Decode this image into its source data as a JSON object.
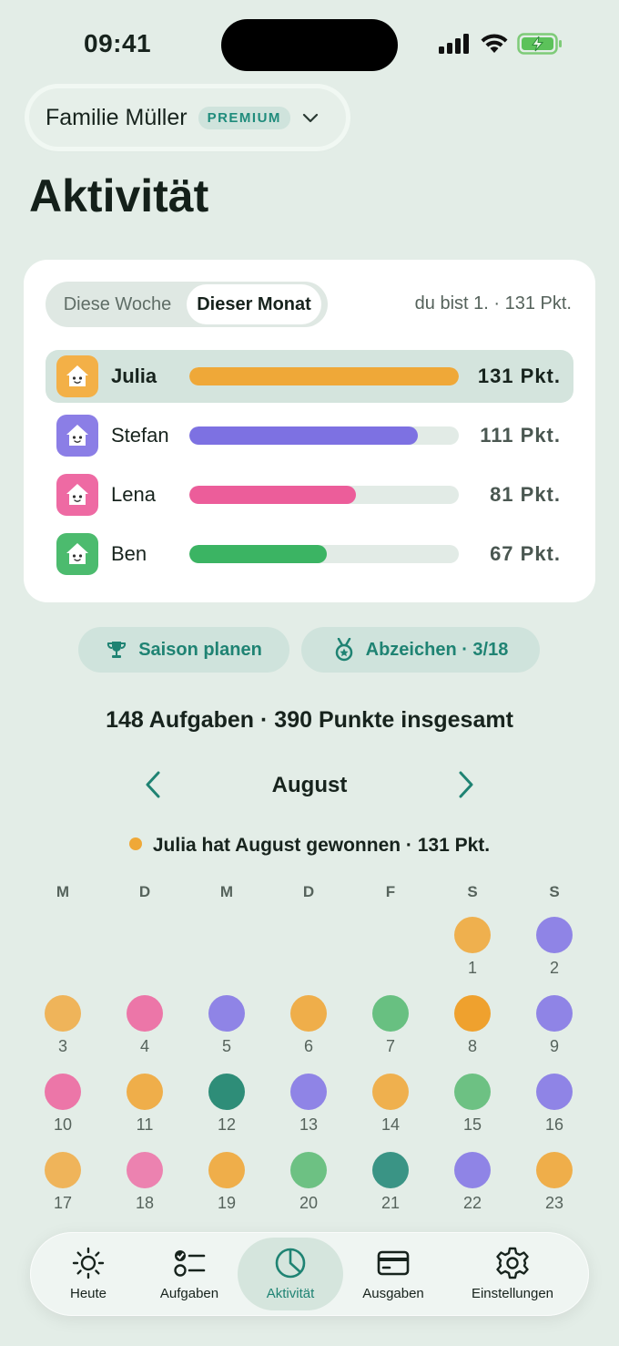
{
  "status": {
    "time": "09:41"
  },
  "family": {
    "name": "Familie Müller",
    "badge": "PREMIUM"
  },
  "page": {
    "title": "Aktivität"
  },
  "leaderboard": {
    "tabs": [
      "Diese Woche",
      "Dieser Monat"
    ],
    "selected_tab": "Dieser Monat",
    "rank_text": "du bist 1. · 131 Pkt.",
    "members": [
      {
        "name": "Julia",
        "points_label": "131 Pkt.",
        "points": 131,
        "color": "#efa838",
        "avatar_bg": "#f3b047"
      },
      {
        "name": "Stefan",
        "points_label": "111 Pkt.",
        "points": 111,
        "color": "#7d71e2",
        "avatar_bg": "#8b7ee6"
      },
      {
        "name": "Lena",
        "points_label": "81 Pkt.",
        "points": 81,
        "color": "#ec5d9a",
        "avatar_bg": "#ee6aa3"
      },
      {
        "name": "Ben",
        "points_label": "67 Pkt.",
        "points": 67,
        "color": "#3bb463",
        "avatar_bg": "#4cbb6e"
      }
    ]
  },
  "actions": {
    "season": "Saison planen",
    "badges": "Abzeichen · 3/18"
  },
  "summary": "148 Aufgaben · 390 Punkte insgesamt",
  "calendar": {
    "month": "August",
    "winner_text": "Julia hat August gewonnen · 131 Pkt.",
    "weekdays": [
      "M",
      "D",
      "M",
      "D",
      "F",
      "S",
      "S"
    ],
    "first_weekday_index": 5,
    "days": [
      {
        "day": "1",
        "color": "#efb04e"
      },
      {
        "day": "2",
        "color": "#8f84e6"
      },
      {
        "day": "3",
        "color": "#efb45a"
      },
      {
        "day": "4",
        "color": "#ec76a8"
      },
      {
        "day": "5",
        "color": "#8f84e6"
      },
      {
        "day": "6",
        "color": "#efae4a"
      },
      {
        "day": "7",
        "color": "#68c081"
      },
      {
        "day": "8",
        "color": "#efa12e"
      },
      {
        "day": "9",
        "color": "#8f84e6"
      },
      {
        "day": "10",
        "color": "#ec76a8"
      },
      {
        "day": "11",
        "color": "#efae4a"
      },
      {
        "day": "12",
        "color": "#2e8d78"
      },
      {
        "day": "13",
        "color": "#8f84e6"
      },
      {
        "day": "14",
        "color": "#efb04e"
      },
      {
        "day": "15",
        "color": "#6dc183"
      },
      {
        "day": "16",
        "color": "#8f84e6"
      },
      {
        "day": "17",
        "color": "#efb45a"
      },
      {
        "day": "18",
        "color": "#ec82b0"
      },
      {
        "day": "19",
        "color": "#efae4a"
      },
      {
        "day": "20",
        "color": "#6dc183"
      },
      {
        "day": "21",
        "color": "#3a9485"
      },
      {
        "day": "22",
        "color": "#8f84e6"
      },
      {
        "day": "23",
        "color": "#efae4a"
      }
    ]
  },
  "tabbar": {
    "items": [
      {
        "label": "Heute",
        "icon": "sun-icon"
      },
      {
        "label": "Aufgaben",
        "icon": "checklist-icon"
      },
      {
        "label": "Aktivität",
        "icon": "pie-chart-icon"
      },
      {
        "label": "Ausgaben",
        "icon": "credit-card-icon"
      },
      {
        "label": "Einstellungen",
        "icon": "gear-icon"
      }
    ],
    "active": "Aktivität"
  },
  "colors": {
    "accent": "#1f8373",
    "background": "#e3ede7"
  }
}
